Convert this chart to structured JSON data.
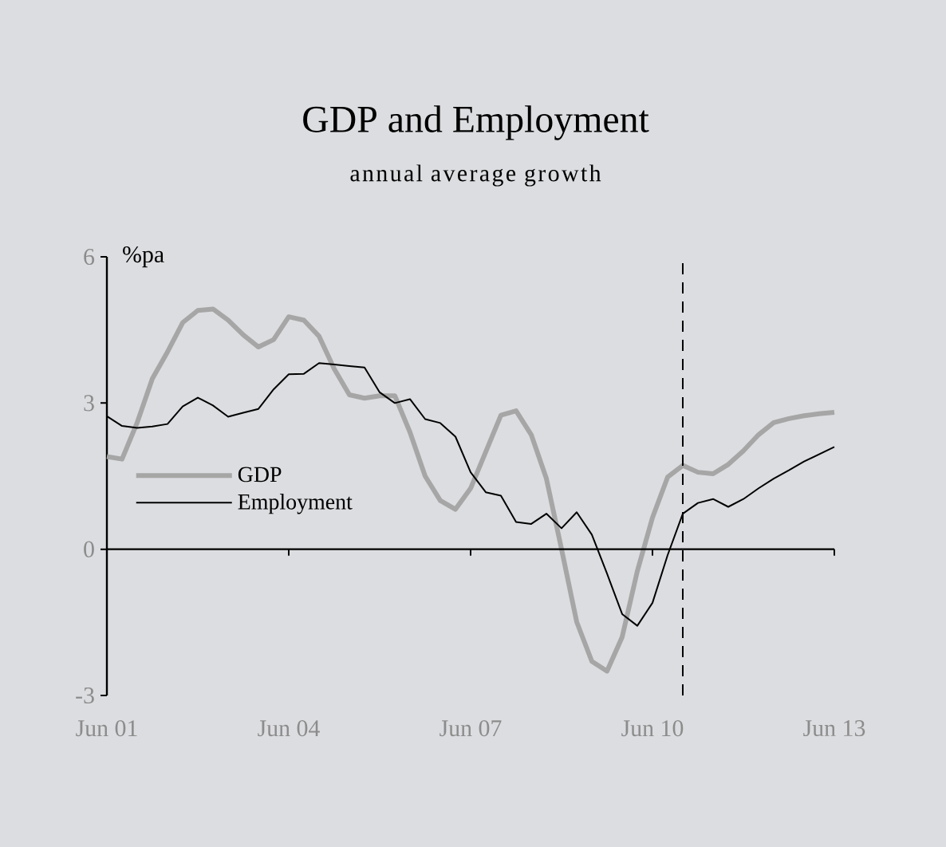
{
  "chart_data": {
    "type": "line",
    "title": "GDP and Employment",
    "subtitle": "annual average growth",
    "ylabel": "%pa",
    "x": [
      "2001-06",
      "2001-09",
      "2001-12",
      "2002-03",
      "2002-06",
      "2002-09",
      "2002-12",
      "2003-03",
      "2003-06",
      "2003-09",
      "2003-12",
      "2004-03",
      "2004-06",
      "2004-09",
      "2004-12",
      "2005-03",
      "2005-06",
      "2005-09",
      "2005-12",
      "2006-03",
      "2006-06",
      "2006-09",
      "2006-12",
      "2007-03",
      "2007-06",
      "2007-09",
      "2007-12",
      "2008-03",
      "2008-06",
      "2008-09",
      "2008-12",
      "2009-03",
      "2009-06",
      "2009-09",
      "2009-12",
      "2010-03",
      "2010-06",
      "2010-09",
      "2010-12",
      "2011-03",
      "2011-06",
      "2011-09",
      "2011-12",
      "2012-03",
      "2012-06",
      "2012-09",
      "2012-12",
      "2013-03",
      "2013-06"
    ],
    "series": [
      {
        "name": "GDP",
        "color": "#a6a6a6",
        "values": [
          1.9,
          1.85,
          2.6,
          3.5,
          4.05,
          4.65,
          4.9,
          4.93,
          4.7,
          4.4,
          4.15,
          4.3,
          4.77,
          4.7,
          4.37,
          3.7,
          3.17,
          3.1,
          3.15,
          3.15,
          2.4,
          1.5,
          1.0,
          0.82,
          1.25,
          2.0,
          2.75,
          2.84,
          2.35,
          1.45,
          0.0,
          -1.49,
          -2.3,
          -2.5,
          -1.8,
          -0.45,
          0.65,
          1.48,
          1.72,
          1.58,
          1.55,
          1.74,
          2.02,
          2.35,
          2.6,
          2.68,
          2.74,
          2.78,
          2.81
        ]
      },
      {
        "name": "Employment",
        "color": "#000000",
        "values": [
          2.73,
          2.53,
          2.49,
          2.52,
          2.57,
          2.93,
          3.11,
          2.95,
          2.72,
          2.8,
          2.88,
          3.28,
          3.59,
          3.6,
          3.82,
          3.79,
          3.76,
          3.73,
          3.22,
          3.0,
          3.08,
          2.67,
          2.59,
          2.31,
          1.58,
          1.17,
          1.1,
          0.56,
          0.52,
          0.73,
          0.43,
          0.76,
          0.3,
          -0.5,
          -1.33,
          -1.57,
          -1.1,
          -0.12,
          0.73,
          0.95,
          1.03,
          0.87,
          1.03,
          1.25,
          1.45,
          1.62,
          1.8,
          1.95,
          2.1
        ]
      }
    ],
    "xlim": [
      "2001-06",
      "2013-06"
    ],
    "ylim": [
      -3,
      6
    ],
    "xticks": [
      {
        "value": "2001-06",
        "label": "Jun 01"
      },
      {
        "value": "2004-06",
        "label": "Jun 04"
      },
      {
        "value": "2007-06",
        "label": "Jun 07"
      },
      {
        "value": "2010-06",
        "label": "Jun 10"
      },
      {
        "value": "2013-06",
        "label": "Jun 13"
      }
    ],
    "yticks": [
      -3,
      0,
      3,
      6
    ],
    "ref_lines": [
      {
        "axis": "x",
        "value": "2010-12",
        "color": "#000000",
        "line_style": "dashed"
      }
    ],
    "legend": "left",
    "marker": "none",
    "line_style": "solid"
  }
}
